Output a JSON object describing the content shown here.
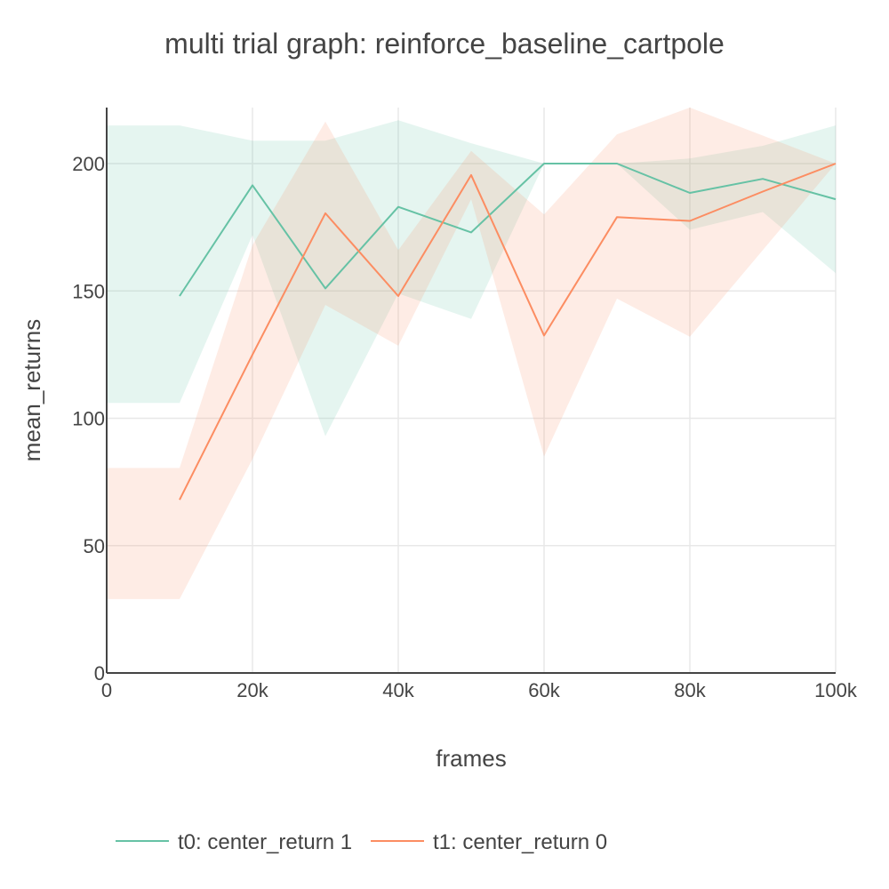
{
  "chart_data": {
    "type": "line",
    "title": "multi trial graph: reinforce_baseline_cartpole",
    "xlabel": "frames",
    "ylabel": "mean_returns",
    "xlim": [
      0,
      100000
    ],
    "ylim": [
      0,
      222
    ],
    "x_ticks": [
      {
        "value": 0,
        "label": "0"
      },
      {
        "value": 20000,
        "label": "20k"
      },
      {
        "value": 40000,
        "label": "40k"
      },
      {
        "value": 60000,
        "label": "60k"
      },
      {
        "value": 80000,
        "label": "80k"
      },
      {
        "value": 100000,
        "label": "100k"
      }
    ],
    "y_ticks": [
      {
        "value": 0,
        "label": "0"
      },
      {
        "value": 50,
        "label": "50"
      },
      {
        "value": 100,
        "label": "100"
      },
      {
        "value": 150,
        "label": "150"
      },
      {
        "value": 200,
        "label": "200"
      }
    ],
    "grid": true,
    "legend_position": "bottom",
    "series": [
      {
        "name": "t0: center_return 1",
        "color": "#66c2a5",
        "x": [
          10000,
          20000,
          30000,
          40000,
          50000,
          60000,
          70000,
          80000,
          90000,
          100000
        ],
        "y": [
          148,
          191.5,
          151,
          183,
          173,
          200,
          200,
          188.5,
          194,
          186
        ],
        "band_x": [
          0,
          10000,
          20000,
          30000,
          40000,
          50000,
          60000,
          70000,
          80000,
          90000,
          100000
        ],
        "band_upper": [
          215,
          215,
          209,
          209,
          217,
          208,
          200,
          200,
          202,
          207,
          215
        ],
        "band_lower": [
          106,
          106,
          172,
          93,
          149,
          139,
          200,
          200,
          174,
          181,
          157
        ]
      },
      {
        "name": "t1: center_return 0",
        "color": "#fc8d62",
        "x": [
          10000,
          20000,
          30000,
          40000,
          50000,
          60000,
          70000,
          80000,
          90000,
          100000
        ],
        "y": [
          68,
          125,
          180.5,
          148,
          195.5,
          132.5,
          179,
          177.5,
          189,
          200
        ],
        "band_x": [
          0,
          10000,
          20000,
          30000,
          40000,
          50000,
          60000,
          70000,
          80000,
          90000,
          100000
        ],
        "band_upper": [
          80.5,
          80.5,
          168,
          216.5,
          166,
          205,
          180,
          211.5,
          222,
          211,
          200
        ],
        "band_lower": [
          29,
          29,
          84,
          144.5,
          128.5,
          186,
          85,
          147,
          132,
          166,
          200
        ]
      }
    ]
  }
}
